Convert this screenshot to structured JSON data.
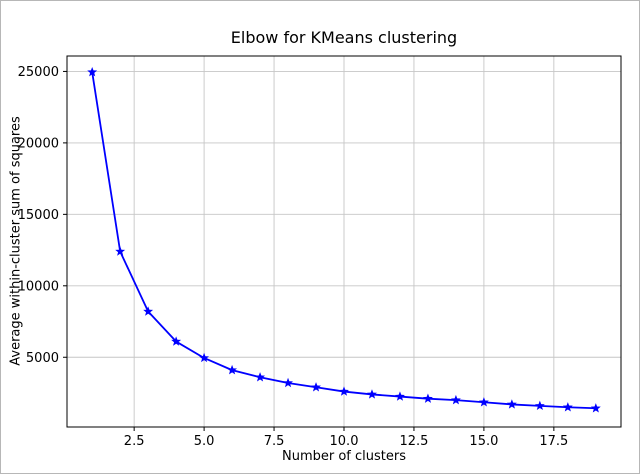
{
  "chart_data": {
    "type": "line",
    "title": "Elbow for KMeans clustering",
    "xlabel": "Number of clusters",
    "ylabel": "Average within-cluster sum of squares",
    "x": [
      1,
      2,
      3,
      4,
      5,
      6,
      7,
      8,
      9,
      10,
      11,
      12,
      13,
      14,
      15,
      16,
      17,
      18,
      19
    ],
    "y": [
      24950,
      12400,
      8200,
      6100,
      4950,
      4100,
      3600,
      3200,
      2900,
      2600,
      2400,
      2250,
      2100,
      2000,
      1850,
      1700,
      1600,
      1500,
      1430
    ],
    "xlim": [
      0.1,
      19.9
    ],
    "ylim": [
      120,
      26080
    ],
    "xticks": [
      2.5,
      5,
      7.5,
      10,
      12.5,
      15,
      17.5
    ],
    "xtick_labels": [
      "2.5",
      "5.0",
      "7.5",
      "10.0",
      "12.5",
      "15.0",
      "17.5"
    ],
    "yticks": [
      5000,
      10000,
      15000,
      20000,
      25000
    ],
    "ytick_labels": [
      "5000",
      "10000",
      "15000",
      "20000",
      "25000"
    ],
    "grid": true,
    "legend": "none",
    "line_color": "#0000ff",
    "marker": "star",
    "grid_color": "#c6c6c6",
    "axis_color": "#000000"
  }
}
